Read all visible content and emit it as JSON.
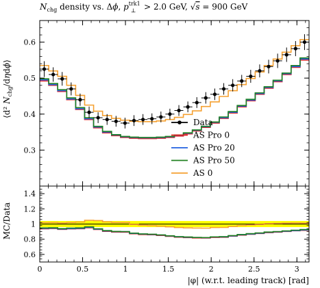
{
  "chart_data": [
    {
      "type": "line",
      "title": "N_chg density vs. Δφ, p_⊥^trk1 > 2.0 GeV, √s = 900 GeV",
      "ylabel": "⟨d² N_chg/dη dφ⟩",
      "xlim": [
        0,
        3.1416
      ],
      "ylim": [
        0.2,
        0.66
      ],
      "xticks": [
        0,
        0.5,
        1,
        1.5,
        2,
        2.5,
        3
      ],
      "xtick_labels": [
        "0",
        "0.5",
        "1",
        "1.5",
        "2",
        "2.5",
        "3"
      ],
      "yticks": [
        0.3,
        0.4,
        0.5,
        0.6
      ],
      "ytick_labels": [
        "0.3",
        "0.4",
        "0.5",
        "0.6"
      ],
      "legend_position": "center-right",
      "legend": [
        "Data",
        "AS Pro 0",
        "AS Pro 20",
        "AS Pro 50",
        "AS 0"
      ],
      "x": [
        0.0524,
        0.1571,
        0.2618,
        0.3665,
        0.4712,
        0.576,
        0.6807,
        0.7854,
        0.8901,
        0.9948,
        1.0996,
        1.2043,
        1.309,
        1.4137,
        1.5184,
        1.6232,
        1.7279,
        1.8326,
        1.9373,
        2.042,
        2.1468,
        2.2515,
        2.3562,
        2.4609,
        2.5656,
        2.6704,
        2.7751,
        2.8798,
        2.9845,
        3.0892
      ],
      "series": [
        {
          "name": "Data",
          "color": "#000000",
          "values": [
            0.525,
            0.51,
            0.498,
            0.47,
            0.44,
            0.405,
            0.39,
            0.385,
            0.38,
            0.375,
            0.382,
            0.385,
            0.387,
            0.392,
            0.4,
            0.41,
            0.42,
            0.432,
            0.445,
            0.455,
            0.47,
            0.48,
            0.492,
            0.505,
            0.52,
            0.532,
            0.548,
            0.565,
            0.582,
            0.6
          ],
          "errors": [
            0.022,
            0.02,
            0.019,
            0.018,
            0.017,
            0.016,
            0.015,
            0.015,
            0.015,
            0.015,
            0.015,
            0.015,
            0.015,
            0.015,
            0.015,
            0.015,
            0.015,
            0.015,
            0.016,
            0.016,
            0.016,
            0.017,
            0.017,
            0.018,
            0.018,
            0.019,
            0.02,
            0.02,
            0.021,
            0.022
          ]
        },
        {
          "name": "AS Pro 0",
          "color": "#e02020",
          "values": [
            0.492,
            0.48,
            0.463,
            0.44,
            0.413,
            0.385,
            0.362,
            0.348,
            0.34,
            0.335,
            0.333,
            0.332,
            0.332,
            0.333,
            0.335,
            0.339,
            0.345,
            0.353,
            0.363,
            0.375,
            0.388,
            0.403,
            0.42,
            0.437,
            0.455,
            0.472,
            0.49,
            0.51,
            0.53,
            0.55
          ]
        },
        {
          "name": "AS Pro 20",
          "color": "#2060e0",
          "values": [
            0.495,
            0.482,
            0.465,
            0.442,
            0.415,
            0.387,
            0.364,
            0.35,
            0.342,
            0.337,
            0.335,
            0.334,
            0.334,
            0.335,
            0.337,
            0.341,
            0.347,
            0.355,
            0.365,
            0.377,
            0.39,
            0.405,
            0.422,
            0.439,
            0.457,
            0.474,
            0.492,
            0.512,
            0.532,
            0.553
          ]
        },
        {
          "name": "AS Pro 50",
          "color": "#208020",
          "values": [
            0.498,
            0.485,
            0.468,
            0.445,
            0.418,
            0.39,
            0.366,
            0.352,
            0.343,
            0.338,
            0.336,
            0.335,
            0.335,
            0.336,
            0.338,
            0.342,
            0.348,
            0.356,
            0.366,
            0.378,
            0.392,
            0.407,
            0.424,
            0.441,
            0.459,
            0.476,
            0.494,
            0.514,
            0.535,
            0.556
          ]
        },
        {
          "name": "AS 0",
          "color": "#f5a030",
          "values": [
            0.535,
            0.52,
            0.505,
            0.48,
            0.452,
            0.425,
            0.408,
            0.396,
            0.388,
            0.383,
            0.38,
            0.379,
            0.379,
            0.381,
            0.385,
            0.391,
            0.399,
            0.409,
            0.421,
            0.434,
            0.449,
            0.465,
            0.482,
            0.499,
            0.517,
            0.535,
            0.553,
            0.572,
            0.59,
            0.607
          ]
        }
      ]
    },
    {
      "type": "line",
      "ylabel": "MC/Data",
      "xlabel": "|φ| (w.r.t. leading track) [rad]",
      "xlim": [
        0,
        3.1416
      ],
      "ylim": [
        0.5,
        1.5
      ],
      "xticks": [
        0,
        0.5,
        1,
        1.5,
        2,
        2.5,
        3
      ],
      "xtick_labels": [
        "0",
        "0.5",
        "1",
        "1.5",
        "2",
        "2.5",
        "3"
      ],
      "yticks": [
        0.6,
        0.8,
        1,
        1.2,
        1.4
      ],
      "ytick_labels": [
        "0.6",
        "0.8",
        "1",
        "1.2",
        "1.4"
      ],
      "band": {
        "color": "#ffff00",
        "lower": 0.96,
        "upper": 1.04
      },
      "series": [
        {
          "name": "AS Pro 0",
          "color": "#e02020",
          "values": [
            0.937,
            0.941,
            0.93,
            0.936,
            0.939,
            0.951,
            0.928,
            0.904,
            0.895,
            0.893,
            0.872,
            0.862,
            0.858,
            0.85,
            0.838,
            0.827,
            0.821,
            0.817,
            0.816,
            0.824,
            0.826,
            0.84,
            0.854,
            0.865,
            0.875,
            0.887,
            0.894,
            0.903,
            0.911,
            0.917
          ]
        },
        {
          "name": "AS Pro 20",
          "color": "#2060e0",
          "values": [
            0.943,
            0.945,
            0.934,
            0.94,
            0.943,
            0.956,
            0.933,
            0.909,
            0.9,
            0.899,
            0.877,
            0.868,
            0.863,
            0.855,
            0.843,
            0.832,
            0.826,
            0.822,
            0.82,
            0.829,
            0.83,
            0.844,
            0.858,
            0.869,
            0.879,
            0.891,
            0.898,
            0.906,
            0.914,
            0.922
          ]
        },
        {
          "name": "AS Pro 50",
          "color": "#208020",
          "values": [
            0.949,
            0.951,
            0.94,
            0.947,
            0.95,
            0.963,
            0.938,
            0.914,
            0.903,
            0.901,
            0.88,
            0.87,
            0.866,
            0.857,
            0.845,
            0.834,
            0.829,
            0.824,
            0.822,
            0.831,
            0.834,
            0.848,
            0.862,
            0.873,
            0.883,
            0.895,
            0.901,
            0.91,
            0.919,
            0.927
          ]
        },
        {
          "name": "AS 0",
          "color": "#f5a030",
          "values": [
            1.019,
            1.02,
            1.014,
            1.021,
            1.027,
            1.049,
            1.046,
            1.029,
            1.021,
            1.021,
            0.995,
            0.984,
            0.979,
            0.972,
            0.963,
            0.954,
            0.95,
            0.947,
            0.946,
            0.954,
            0.955,
            0.969,
            0.98,
            0.988,
            0.994,
            1.006,
            1.009,
            1.012,
            1.014,
            1.012
          ]
        }
      ]
    }
  ]
}
